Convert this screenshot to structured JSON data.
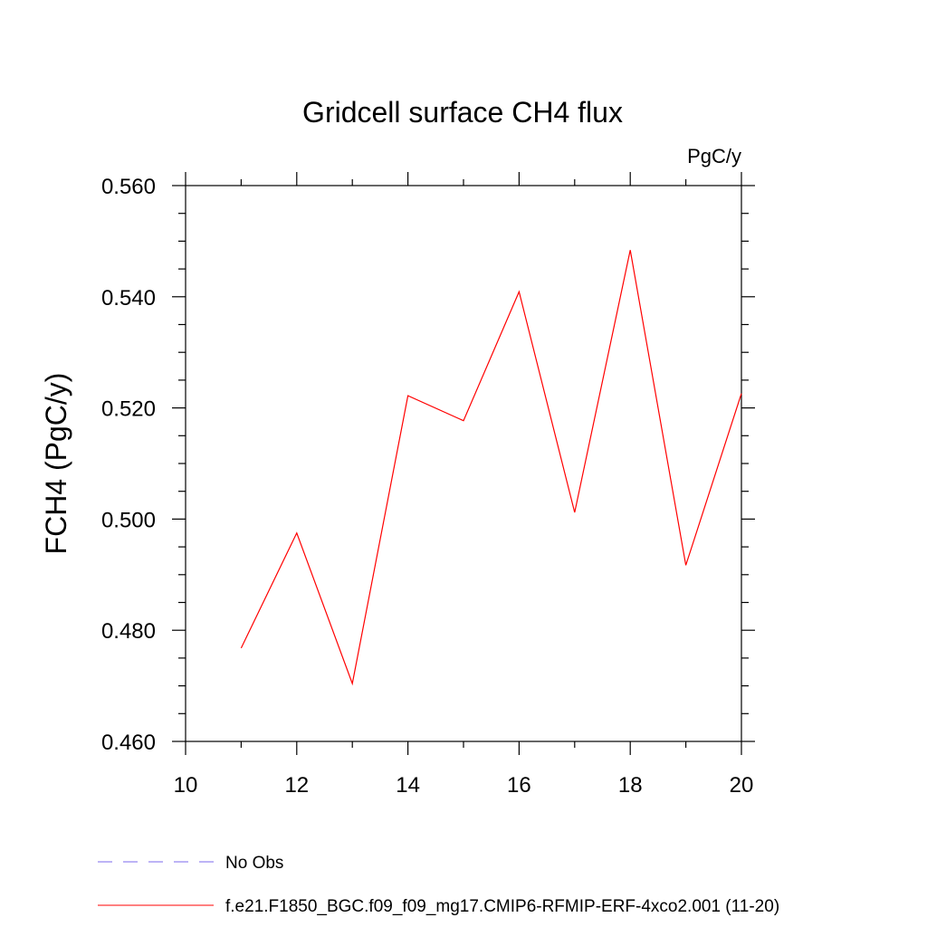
{
  "chart_data": {
    "type": "line",
    "title": "Gridcell surface CH4 flux",
    "units_label": "PgC/y",
    "xlabel": "",
    "ylabel": "FCH4  (PgC/y)",
    "xlim": [
      10,
      20
    ],
    "ylim": [
      0.46,
      0.56
    ],
    "x_ticks": [
      "10",
      "12",
      "14",
      "16",
      "18",
      "20"
    ],
    "y_ticks": [
      "0.460",
      "0.480",
      "0.500",
      "0.520",
      "0.540",
      "0.560"
    ],
    "grid": false,
    "series": [
      {
        "name": "f.e21.F1850_BGC.f09_f09_mg17.CMIP6-RFMIP-ERF-4xco2.001 (11-20)",
        "color": "#ff0000",
        "style": "solid",
        "x": [
          11,
          12,
          13,
          14,
          15,
          16,
          17,
          18,
          19,
          20
        ],
        "y": [
          0.4768,
          0.4975,
          0.4704,
          0.5222,
          0.5177,
          0.5409,
          0.5012,
          0.5484,
          0.4917,
          0.5226
        ]
      }
    ],
    "legend": {
      "placement": "bottom-left",
      "entries": [
        {
          "label": "No Obs",
          "color": "#7b68ee",
          "style": "dashed"
        },
        {
          "label": "f.e21.F1850_BGC.f09_f09_mg17.CMIP6-RFMIP-ERF-4xco2.001 (11-20)",
          "color": "#ff0000",
          "style": "solid"
        }
      ]
    }
  }
}
